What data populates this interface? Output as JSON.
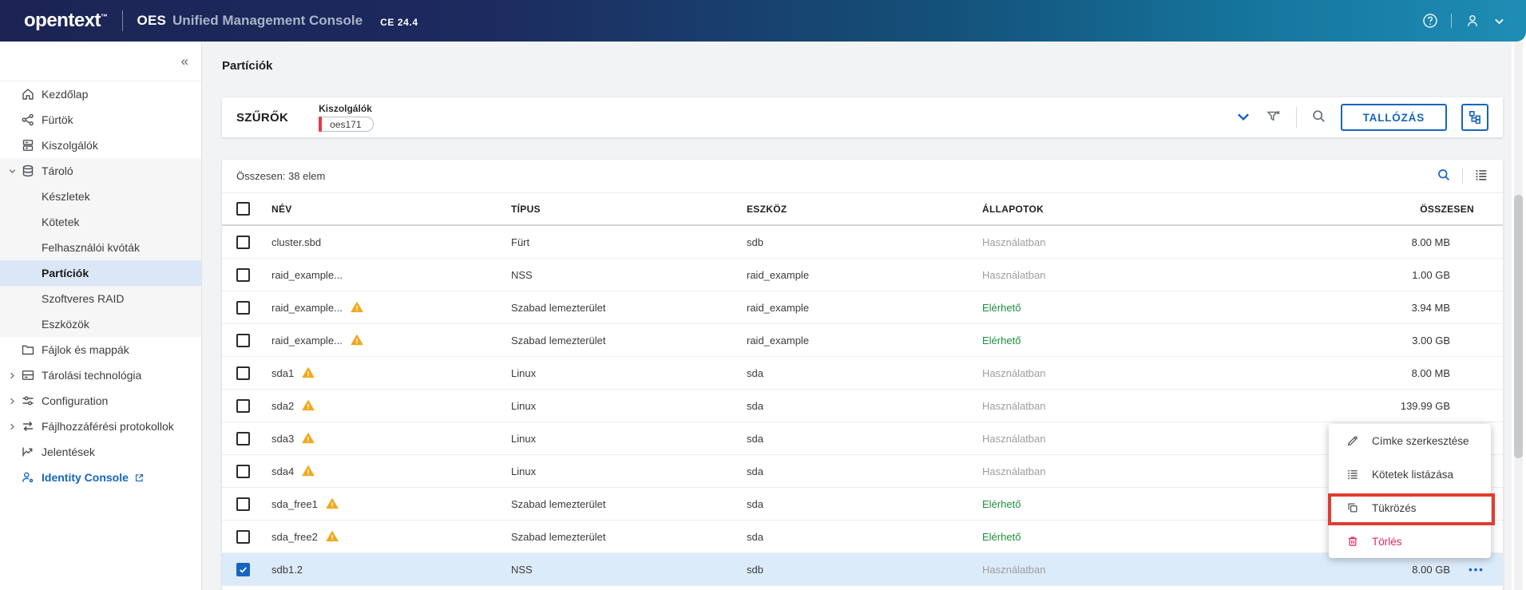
{
  "colors": {
    "accent_blue": "#1565c0",
    "status_available_green": "#1e8e3e",
    "status_inuse_gray": "#9e9e9e",
    "warning_amber": "#f2a71b",
    "danger_pink": "#e8265e",
    "annotation_red": "#e13c2f",
    "chip_bar_red": "#e6394e",
    "selected_row_blue": "#dcebfa"
  },
  "header": {
    "logo": "opentext",
    "logo_tm": "™",
    "product": "OES",
    "product_suffix": "Unified Management Console",
    "version": "CE 24.4"
  },
  "sidebar": {
    "collapse_label": "«",
    "items": [
      {
        "icon": "home-icon",
        "label": "Kezdőlap"
      },
      {
        "icon": "cluster-icon",
        "label": "Fürtök"
      },
      {
        "icon": "server-icon",
        "label": "Kiszolgálók"
      },
      {
        "icon": "storage-icon",
        "label": "Tároló",
        "chevron": "down",
        "group": true
      },
      {
        "label": "Készletek",
        "group": true
      },
      {
        "label": "Kötetek",
        "group": true
      },
      {
        "label": "Felhasználói kvóták",
        "group": true
      },
      {
        "label": "Partíciók",
        "group": true,
        "active": true
      },
      {
        "label": "Szoftveres RAID",
        "group": true
      },
      {
        "label": "Eszközök",
        "group": true
      },
      {
        "icon": "folder-icon",
        "label": "Fájlok és mappák"
      },
      {
        "icon": "storage-tech-icon",
        "label": "Tárolási technológia",
        "chevron": "right"
      },
      {
        "icon": "sliders-icon",
        "label": "Configuration",
        "chevron": "right"
      },
      {
        "icon": "protocols-icon",
        "label": "Fájlhozzáférési protokollok",
        "chevron": "right"
      },
      {
        "icon": "reports-icon",
        "label": "Jelentések"
      },
      {
        "icon": "identity-icon",
        "label": "Identity Console",
        "accent": true,
        "external": true
      }
    ]
  },
  "page": {
    "title": "Partíciók"
  },
  "filters": {
    "title": "SZŰRŐK",
    "field_label": "Kiszolgálók",
    "chip_value": "oes171",
    "browse_label": "TALLÓZÁS"
  },
  "table": {
    "summary": "Összesen: 38 elem",
    "headers": {
      "name": "NÉV",
      "type": "TÍPUS",
      "device": "ESZKÖZ",
      "states": "ÁLLAPOTOK",
      "total": "ÖSSZESEN"
    },
    "rows": [
      {
        "name": "cluster.sbd",
        "warn": false,
        "type": "Fürt",
        "device": "sdb",
        "status": "Használatban",
        "status_kind": "muted",
        "size": "8.00 MB"
      },
      {
        "name": "raid_example...",
        "warn": false,
        "type": "NSS",
        "device": "raid_example",
        "status": "Használatban",
        "status_kind": "muted",
        "size": "1.00 GB"
      },
      {
        "name": "raid_example...",
        "warn": true,
        "type": "Szabad lemezterület",
        "device": "raid_example",
        "status": "Elérhető",
        "status_kind": "ok",
        "size": "3.94 MB"
      },
      {
        "name": "raid_example...",
        "warn": true,
        "type": "Szabad lemezterület",
        "device": "raid_example",
        "status": "Elérhető",
        "status_kind": "ok",
        "size": "3.00 GB"
      },
      {
        "name": "sda1",
        "warn": true,
        "type": "Linux",
        "device": "sda",
        "status": "Használatban",
        "status_kind": "muted",
        "size": "8.00 MB"
      },
      {
        "name": "sda2",
        "warn": true,
        "type": "Linux",
        "device": "sda",
        "status": "Használatban",
        "status_kind": "muted",
        "size": "139.99 GB"
      },
      {
        "name": "sda3",
        "warn": true,
        "type": "Linux",
        "device": "sda",
        "status": "Használatban",
        "status_kind": "muted",
        "size": ""
      },
      {
        "name": "sda4",
        "warn": true,
        "type": "Linux",
        "device": "sda",
        "status": "Használatban",
        "status_kind": "muted",
        "size": ""
      },
      {
        "name": "sda_free1",
        "warn": true,
        "type": "Szabad lemezterület",
        "device": "sda",
        "status": "Elérhető",
        "status_kind": "ok",
        "size": ""
      },
      {
        "name": "sda_free2",
        "warn": true,
        "type": "Szabad lemezterület",
        "device": "sda",
        "status": "Elérhető",
        "status_kind": "ok",
        "size": ""
      },
      {
        "name": "sdb1.2",
        "warn": false,
        "type": "NSS",
        "device": "sdb",
        "status": "Használatban",
        "status_kind": "muted",
        "size": "8.00 GB",
        "checked": true,
        "selected": true,
        "menu_dots": "•••"
      }
    ]
  },
  "context_menu": {
    "items": [
      {
        "icon": "edit-icon",
        "label": "Címke szerkesztése"
      },
      {
        "icon": "list-icon",
        "label": "Kötetek listázása"
      },
      {
        "icon": "mirror-icon",
        "label": "Tükrözés",
        "annotated": true
      },
      {
        "icon": "trash-icon",
        "label": "Törlés",
        "danger": true
      }
    ]
  }
}
